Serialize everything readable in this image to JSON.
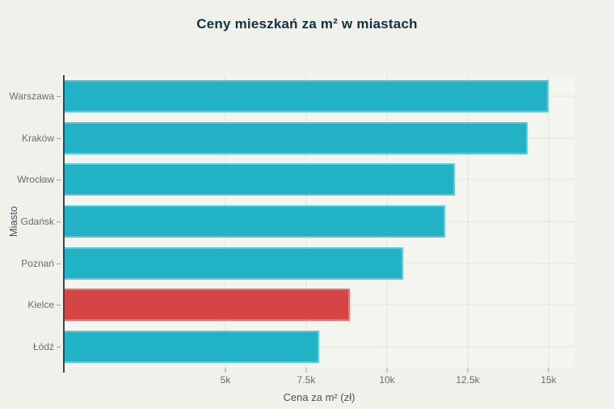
{
  "colors": {
    "background": "#f0f1ea",
    "plot_background": "#f4f5ef",
    "grid": "#e2e4da",
    "axis_line": "#3e464b",
    "tick": "#9aa09f",
    "bar_default": "#22b2c6",
    "bar_highlight": "#d64545",
    "label_text": "#666e73",
    "axis_title_text": "#47525a",
    "title_text": "#14323d"
  },
  "chart_data": {
    "type": "bar",
    "orientation": "horizontal",
    "title": "Ceny mieszkań za m² w miastach",
    "xlabel": "Cena za m² (zł)",
    "ylabel": "Miasto",
    "categories": [
      "Warszawa",
      "Kraków",
      "Wrocław",
      "Gdańsk",
      "Poznań",
      "Kielce",
      "Łódź"
    ],
    "values": [
      15000,
      14350,
      12100,
      11800,
      10500,
      8850,
      7900
    ],
    "highlighted_category": "Kielce",
    "xlim": [
      0,
      15800
    ],
    "x_ticks": [
      {
        "value": 5000,
        "label": "5k"
      },
      {
        "value": 7500,
        "label": "7.5k"
      },
      {
        "value": 10000,
        "label": "10k"
      },
      {
        "value": 12500,
        "label": "12.5k"
      },
      {
        "value": 15000,
        "label": "15k"
      }
    ],
    "grid": true,
    "legend": false
  }
}
